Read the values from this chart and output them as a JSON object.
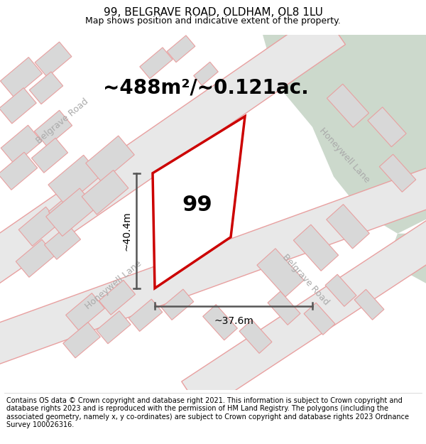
{
  "title": "99, BELGRAVE ROAD, OLDHAM, OL8 1LU",
  "subtitle": "Map shows position and indicative extent of the property.",
  "footer": "Contains OS data © Crown copyright and database right 2021. This information is subject to Crown copyright and database rights 2023 and is reproduced with the permission of HM Land Registry. The polygons (including the associated geometry, namely x, y co-ordinates) are subject to Crown copyright and database rights 2023 Ordnance Survey 100026316.",
  "area_label": "~488m²/~0.121ac.",
  "property_number": "99",
  "dim_height": "~40.4m",
  "dim_width": "~37.6m",
  "map_bg": "#ffffff",
  "green_color": "#ccd9cc",
  "road_fill": "#e8e8e8",
  "road_stroke": "#e8a0a0",
  "building_fill": "#d8d8d8",
  "building_stroke": "#e8a0a0",
  "property_fill": "#ffffff",
  "property_stroke": "#cc0000",
  "dim_line_color": "#555555",
  "road_label_color": "#aaaaaa",
  "title_fontsize": 11,
  "subtitle_fontsize": 9,
  "footer_fontsize": 7,
  "area_label_fontsize": 20,
  "property_label_fontsize": 22,
  "dim_label_fontsize": 10,
  "road_label_fontsize": 9
}
